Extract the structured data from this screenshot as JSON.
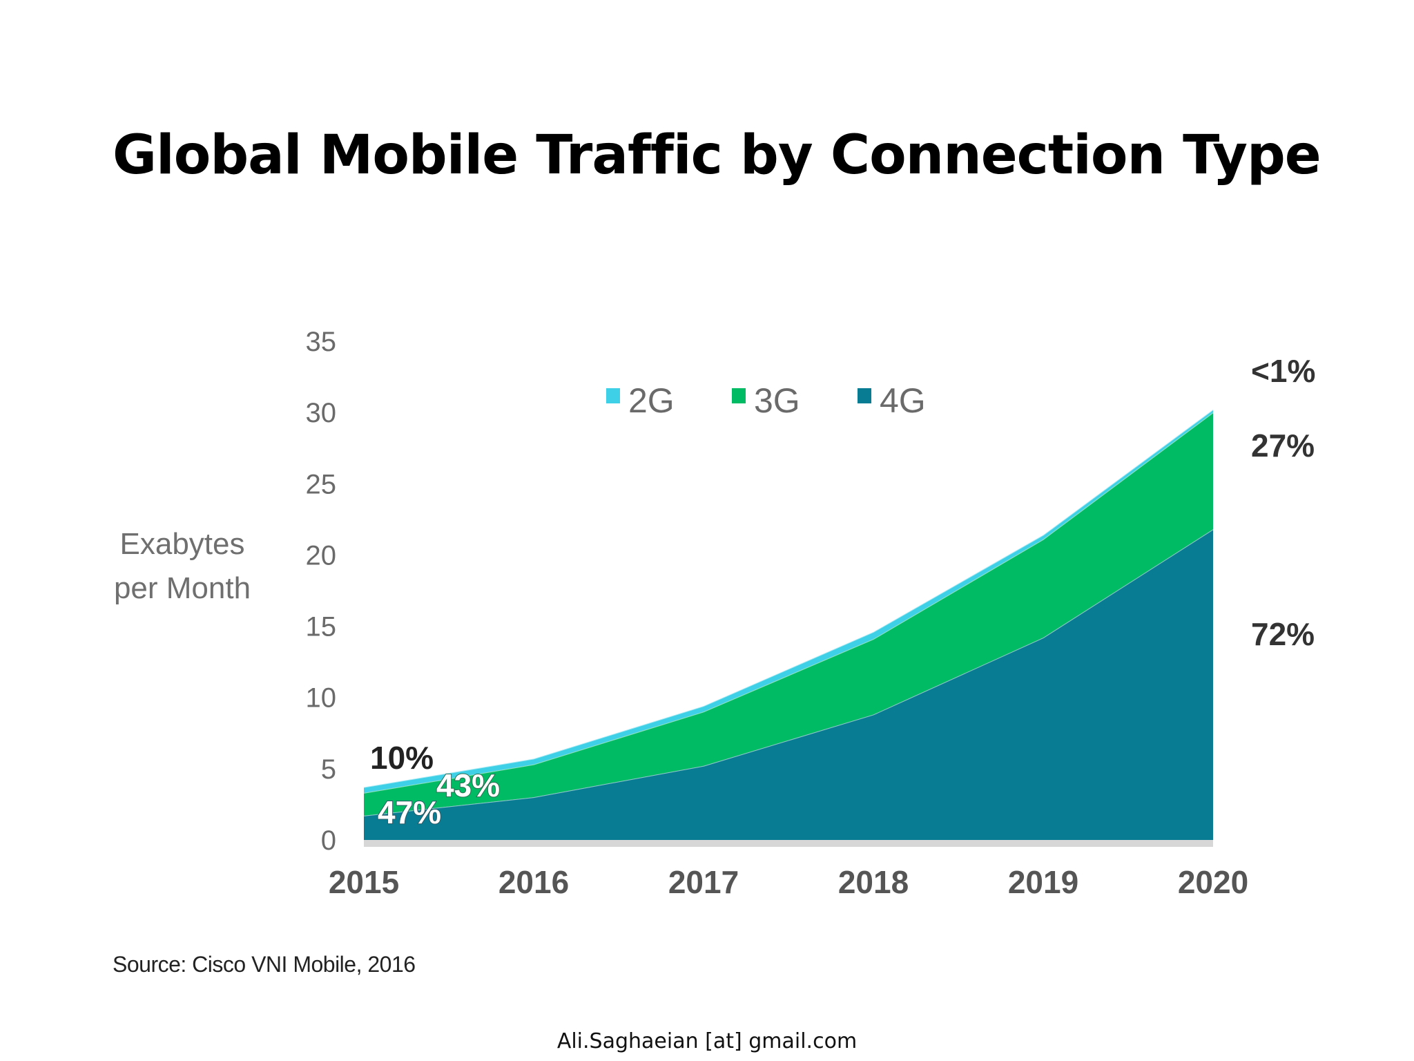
{
  "slide": {
    "title": "Global Mobile Traffic by Connection Type",
    "source": "Source: Cisco VNI Mobile, 2016",
    "footer": "Ali.Saghaeian [at] gmail.com"
  },
  "chart_data": {
    "type": "area",
    "stacked": true,
    "x": [
      "2015",
      "2016",
      "2017",
      "2018",
      "2019",
      "2020"
    ],
    "ylabel": [
      "Exabytes",
      "per Month"
    ],
    "ylim": [
      0,
      35
    ],
    "yticks": [
      0,
      5,
      10,
      15,
      20,
      25,
      30,
      35
    ],
    "grid": false,
    "legend_position": "top",
    "series": [
      {
        "name": "4G",
        "color": "#087c92",
        "values": [
          1.7,
          3.0,
          5.2,
          8.8,
          14.2,
          21.8
        ]
      },
      {
        "name": "3G",
        "color": "#00bb63",
        "values": [
          1.6,
          2.3,
          3.8,
          5.3,
          6.9,
          8.2
        ]
      },
      {
        "name": "2G",
        "color": "#3ed0e6",
        "values": [
          0.4,
          0.4,
          0.4,
          0.5,
          0.3,
          0.2
        ]
      }
    ],
    "annotations": {
      "start": [
        {
          "text": "10%",
          "series": "2G"
        },
        {
          "text": "43%",
          "series": "3G"
        },
        {
          "text": "47%",
          "series": "4G"
        }
      ],
      "end": [
        {
          "text": "<1%",
          "series": "2G"
        },
        {
          "text": "27%",
          "series": "3G"
        },
        {
          "text": "72%",
          "series": "4G"
        }
      ]
    }
  }
}
